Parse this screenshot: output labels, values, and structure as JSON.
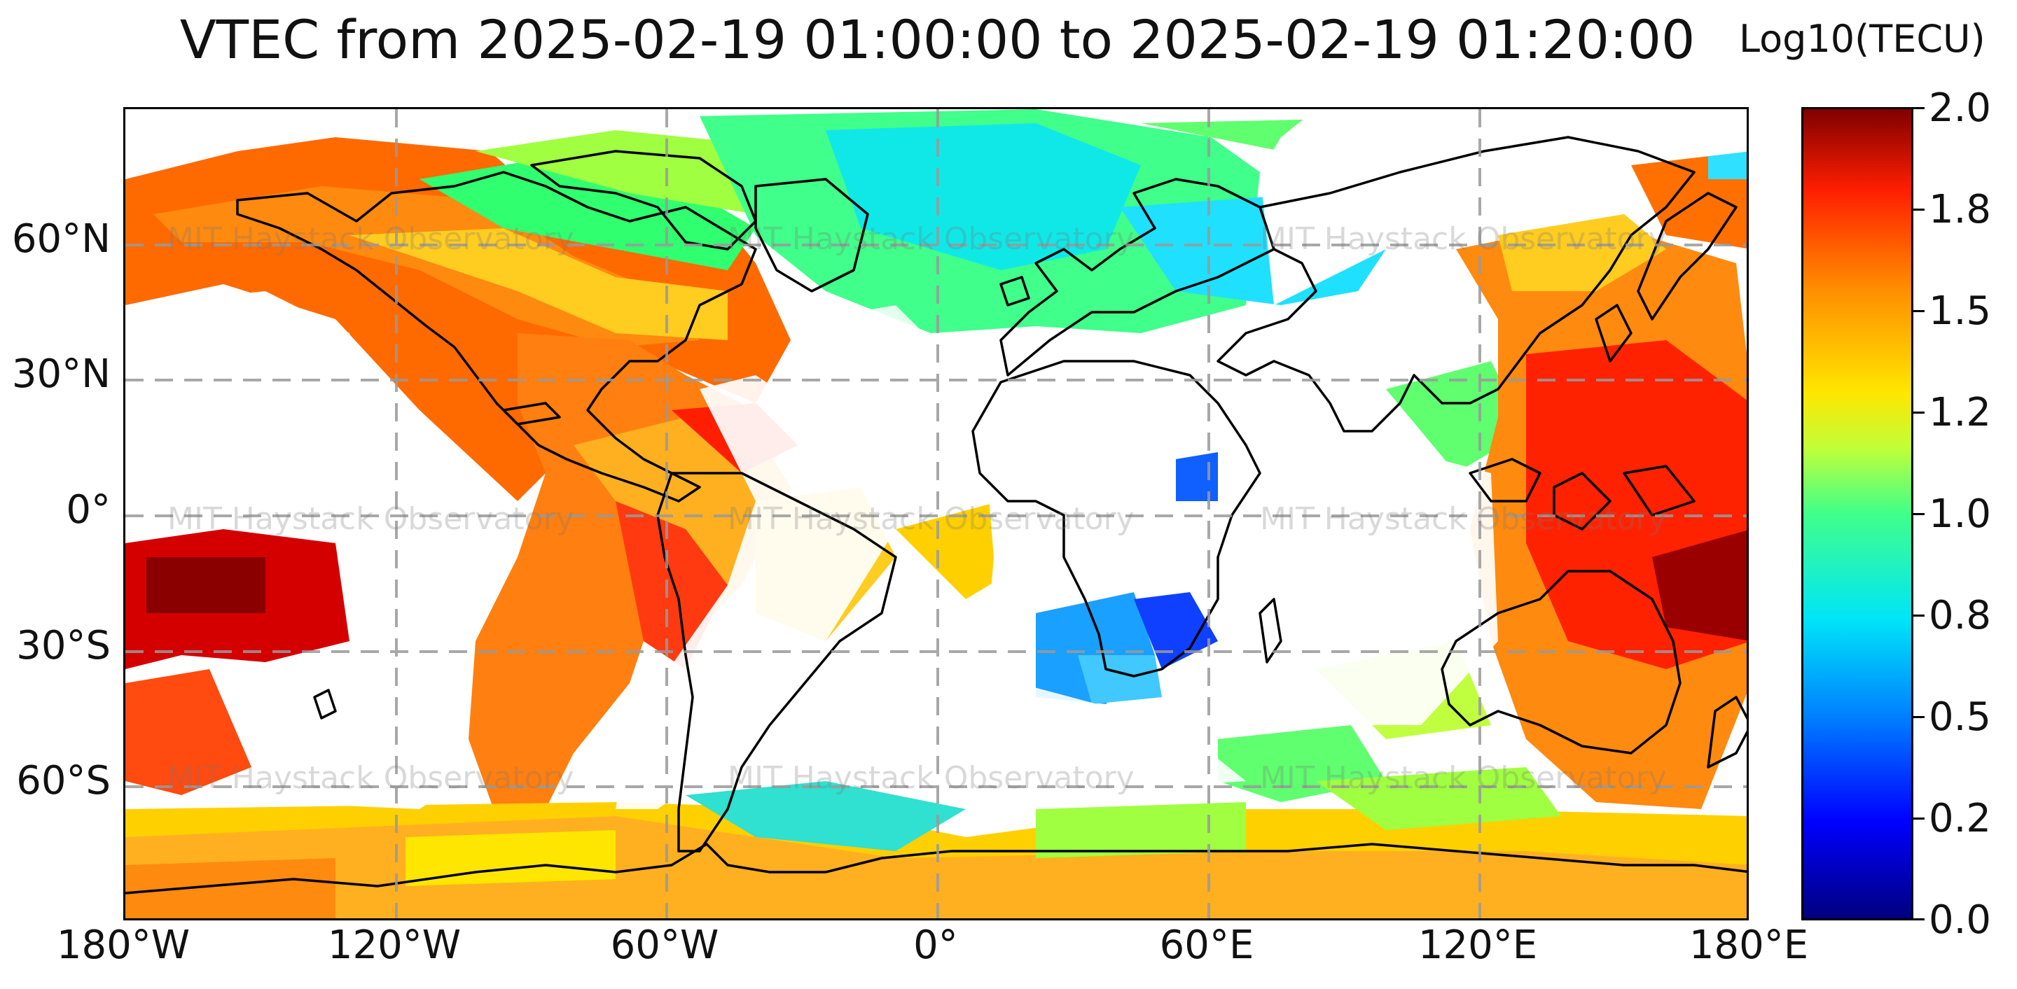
{
  "title": "VTEC from 2025-02-19 01:00:00 to 2025-02-19 01:20:00",
  "colorbar": {
    "label": "Log10(TECU)",
    "ticks": [
      "2.0",
      "1.8",
      "1.5",
      "1.2",
      "1.0",
      "0.8",
      "0.5",
      "0.2",
      "0.0"
    ],
    "range": [
      0.0,
      2.0
    ],
    "colormap": "jet",
    "colors": [
      "#00007f",
      "#0000ff",
      "#0080ff",
      "#00e5f8",
      "#40ff8a",
      "#bfff3a",
      "#ffe600",
      "#ff8c00",
      "#ff1e00",
      "#7f0000"
    ]
  },
  "map": {
    "projection": "equirectangular",
    "lon_range": [
      -180,
      180
    ],
    "lat_range": [
      -90,
      90
    ],
    "x_ticks": [
      "180°W",
      "120°W",
      "60°W",
      "0°",
      "60°E",
      "120°E",
      "180°E"
    ],
    "y_ticks": [
      "60°N",
      "30°N",
      "0°",
      "30°S",
      "60°S"
    ],
    "gridlines": "dashed gray",
    "coastlines": "black",
    "watermark": "MIT Haystack Observatory"
  }
}
